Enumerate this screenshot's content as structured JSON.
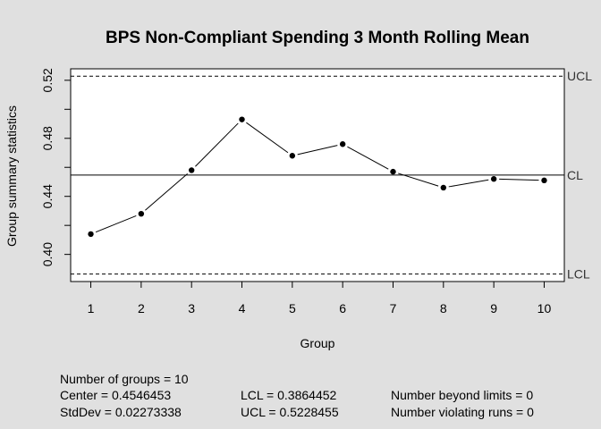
{
  "chart_data": {
    "type": "line",
    "title": "BPS Non-Compliant Spending 3 Month Rolling Mean",
    "xlabel": "Group",
    "ylabel": "Group summary statistics",
    "x": [
      1,
      2,
      3,
      4,
      5,
      6,
      7,
      8,
      9,
      10
    ],
    "values": [
      0.414,
      0.428,
      0.458,
      0.493,
      0.468,
      0.476,
      0.457,
      0.446,
      0.452,
      0.451
    ],
    "xlim": [
      0.6,
      10.4
    ],
    "ylim": [
      0.3813,
      0.5279
    ],
    "x_ticks": [
      "1",
      "2",
      "3",
      "4",
      "5",
      "6",
      "7",
      "8",
      "9",
      "10"
    ],
    "y_ticks": [
      {
        "value": 0.4,
        "label": "0.40"
      },
      {
        "value": 0.44,
        "label": "0.44"
      },
      {
        "value": 0.48,
        "label": "0.48"
      },
      {
        "value": 0.52,
        "label": "0.52"
      }
    ],
    "center_line": 0.4546453,
    "lcl": 0.3864452,
    "ucl": 0.5228455,
    "limit_labels": {
      "ucl": "UCL",
      "cl": "CL",
      "lcl": "LCL"
    },
    "grid": false
  },
  "stats": {
    "groups": "Number of groups = 10",
    "center": "Center = 0.4546453",
    "stddev": "StdDev = 0.02273338",
    "lcl": "LCL = 0.3864452",
    "ucl": "UCL = 0.5228455",
    "beyond": "Number beyond limits = 0",
    "runs": "Number violating runs = 0"
  }
}
